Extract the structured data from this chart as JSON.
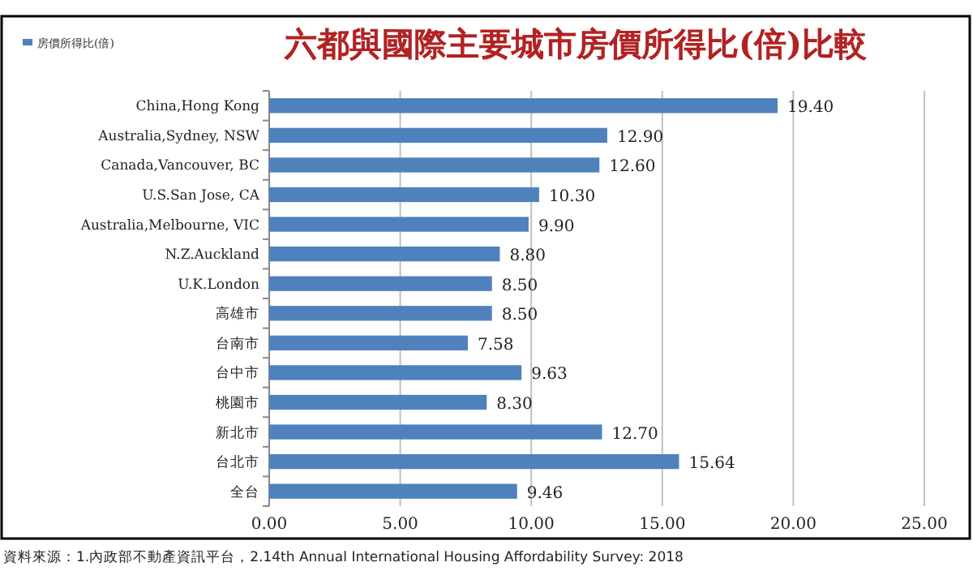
{
  "chart_data": {
    "type": "bar",
    "orientation": "horizontal",
    "title": "六都與國際主要城市房價所得比(倍)比較",
    "categories": [
      "China,Hong Kong",
      "Australia,Sydney, NSW",
      "Canada,Vancouver, BC",
      "U.S.San Jose, CA",
      "Australia,Melbourne, VIC",
      "N.Z.Auckland",
      "U.K.London",
      "高雄市",
      "台南市",
      "台中市",
      "桃園市",
      "新北市",
      "台北市",
      "全台"
    ],
    "series": [
      {
        "name": "房價所得比(倍)",
        "color": "#4f81bd",
        "values": [
          19.4,
          12.9,
          12.6,
          10.3,
          9.9,
          8.8,
          8.5,
          8.5,
          7.58,
          9.63,
          8.3,
          12.7,
          15.64,
          9.46
        ],
        "value_labels": [
          "19.40",
          "12.90",
          "12.60",
          "10.30",
          "9.90",
          "8.80",
          "8.50",
          "8.50",
          "7.58",
          "9.63",
          "8.30",
          "12.70",
          "15.64",
          "9.46"
        ]
      }
    ],
    "xlim": [
      0,
      25
    ],
    "xticks": [
      {
        "value": 0,
        "label": "0.00"
      },
      {
        "value": 5,
        "label": "5.00"
      },
      {
        "value": 10,
        "label": "10.00"
      },
      {
        "value": 15,
        "label": "15.00"
      },
      {
        "value": 20,
        "label": "20.00"
      },
      {
        "value": 25,
        "label": "25.00"
      }
    ],
    "grid": "x",
    "legend": "top left",
    "annotations": [
      "資料來源：1.內政部不動產資訊平台，2.14th Annual International Housing Affordability Survey: 2018"
    ]
  }
}
